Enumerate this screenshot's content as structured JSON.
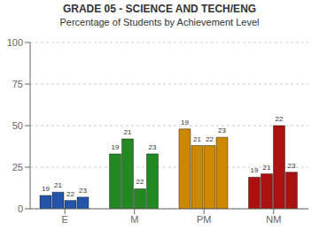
{
  "chart_data": {
    "type": "bar",
    "title": "GRADE 05 - SCIENCE AND TECH/ENG",
    "subtitle": "Percentage of Students by Achievement Level",
    "categories": [
      "E",
      "M",
      "PM",
      "NM"
    ],
    "series": [
      {
        "name": "19",
        "values": [
          8,
          33,
          48,
          19
        ]
      },
      {
        "name": "21",
        "values": [
          10,
          42,
          38,
          21
        ]
      },
      {
        "name": "22",
        "values": [
          5,
          12,
          38,
          50
        ]
      },
      {
        "name": "23",
        "values": [
          7,
          33,
          43,
          22
        ]
      }
    ],
    "colors": [
      "#2255aa",
      "#228822",
      "#cc8800",
      "#aa1111"
    ],
    "ylim": [
      0,
      100
    ],
    "yticks": [
      0,
      25,
      50,
      75,
      100
    ],
    "grid": true
  }
}
